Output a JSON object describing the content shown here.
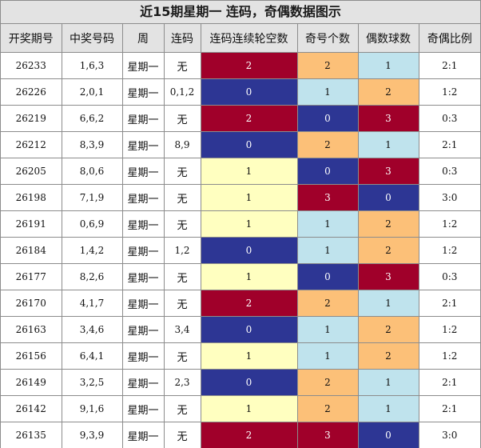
{
  "title": "近15期星期一 连码，奇偶数据图示",
  "colors": {
    "darkred": "#a0002a",
    "navy": "#2d3694",
    "cream": "#ffffc0",
    "orange": "#fcc078",
    "lightblue": "#bfe3ed",
    "white": "#ffffff"
  },
  "headers": [
    "开奖期号",
    "中奖号码",
    "周",
    "连码",
    "连码连续轮空数",
    "奇号个数",
    "偶数球数",
    "奇偶比例"
  ],
  "rows": [
    {
      "issue": "26233",
      "numbers": "1,6,3",
      "week": "星期一",
      "lianma": "无",
      "gap": "2",
      "gapColor": "darkred",
      "odd": "2",
      "oddColor": "orange",
      "even": "1",
      "evenColor": "lightblue",
      "ratio": "2:1"
    },
    {
      "issue": "26226",
      "numbers": "2,0,1",
      "week": "星期一",
      "lianma": "0,1,2",
      "gap": "0",
      "gapColor": "navy",
      "odd": "1",
      "oddColor": "lightblue",
      "even": "2",
      "evenColor": "orange",
      "ratio": "1:2"
    },
    {
      "issue": "26219",
      "numbers": "6,6,2",
      "week": "星期一",
      "lianma": "无",
      "gap": "2",
      "gapColor": "darkred",
      "odd": "0",
      "oddColor": "navy",
      "even": "3",
      "evenColor": "darkred",
      "ratio": "0:3"
    },
    {
      "issue": "26212",
      "numbers": "8,3,9",
      "week": "星期一",
      "lianma": "8,9",
      "gap": "0",
      "gapColor": "navy",
      "odd": "2",
      "oddColor": "orange",
      "even": "1",
      "evenColor": "lightblue",
      "ratio": "2:1"
    },
    {
      "issue": "26205",
      "numbers": "8,0,6",
      "week": "星期一",
      "lianma": "无",
      "gap": "1",
      "gapColor": "cream",
      "odd": "0",
      "oddColor": "navy",
      "even": "3",
      "evenColor": "darkred",
      "ratio": "0:3"
    },
    {
      "issue": "26198",
      "numbers": "7,1,9",
      "week": "星期一",
      "lianma": "无",
      "gap": "1",
      "gapColor": "cream",
      "odd": "3",
      "oddColor": "darkred",
      "even": "0",
      "evenColor": "navy",
      "ratio": "3:0"
    },
    {
      "issue": "26191",
      "numbers": "0,6,9",
      "week": "星期一",
      "lianma": "无",
      "gap": "1",
      "gapColor": "cream",
      "odd": "1",
      "oddColor": "lightblue",
      "even": "2",
      "evenColor": "orange",
      "ratio": "1:2"
    },
    {
      "issue": "26184",
      "numbers": "1,4,2",
      "week": "星期一",
      "lianma": "1,2",
      "gap": "0",
      "gapColor": "navy",
      "odd": "1",
      "oddColor": "lightblue",
      "even": "2",
      "evenColor": "orange",
      "ratio": "1:2"
    },
    {
      "issue": "26177",
      "numbers": "8,2,6",
      "week": "星期一",
      "lianma": "无",
      "gap": "1",
      "gapColor": "cream",
      "odd": "0",
      "oddColor": "navy",
      "even": "3",
      "evenColor": "darkred",
      "ratio": "0:3"
    },
    {
      "issue": "26170",
      "numbers": "4,1,7",
      "week": "星期一",
      "lianma": "无",
      "gap": "2",
      "gapColor": "darkred",
      "odd": "2",
      "oddColor": "orange",
      "even": "1",
      "evenColor": "lightblue",
      "ratio": "2:1"
    },
    {
      "issue": "26163",
      "numbers": "3,4,6",
      "week": "星期一",
      "lianma": "3,4",
      "gap": "0",
      "gapColor": "navy",
      "odd": "1",
      "oddColor": "lightblue",
      "even": "2",
      "evenColor": "orange",
      "ratio": "1:2"
    },
    {
      "issue": "26156",
      "numbers": "6,4,1",
      "week": "星期一",
      "lianma": "无",
      "gap": "1",
      "gapColor": "cream",
      "odd": "1",
      "oddColor": "lightblue",
      "even": "2",
      "evenColor": "orange",
      "ratio": "1:2"
    },
    {
      "issue": "26149",
      "numbers": "3,2,5",
      "week": "星期一",
      "lianma": "2,3",
      "gap": "0",
      "gapColor": "navy",
      "odd": "2",
      "oddColor": "orange",
      "even": "1",
      "evenColor": "lightblue",
      "ratio": "2:1"
    },
    {
      "issue": "26142",
      "numbers": "9,1,6",
      "week": "星期一",
      "lianma": "无",
      "gap": "1",
      "gapColor": "cream",
      "odd": "2",
      "oddColor": "orange",
      "even": "1",
      "evenColor": "lightblue",
      "ratio": "2:1"
    },
    {
      "issue": "26135",
      "numbers": "9,3,9",
      "week": "星期一",
      "lianma": "无",
      "gap": "2",
      "gapColor": "darkred",
      "odd": "3",
      "oddColor": "darkred",
      "even": "0",
      "evenColor": "navy",
      "ratio": "3:0"
    }
  ]
}
